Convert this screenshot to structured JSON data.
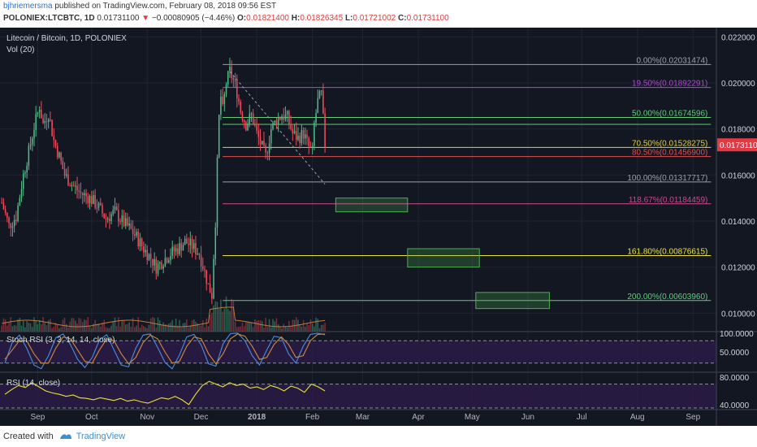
{
  "header": {
    "author": "bjhriemersma",
    "published": "published on TradingView.com, February 08, 2018 09:56 EST",
    "symbol": "POLONIEX:LTCBTC, 1D",
    "last": "0.01731100",
    "change": "−0.00080905 (−4.46%)",
    "o_label": "O:",
    "o": "0.01821400",
    "h_label": "H:",
    "h": "0.01826345",
    "l_label": "L:",
    "l": "0.01721002",
    "c_label": "C:",
    "c": "0.01731100"
  },
  "footer": {
    "created_with": "Created with",
    "brand": "TradingView"
  },
  "colors": {
    "background": "#131722",
    "grid": "#1f2433",
    "up": "#53b987",
    "down": "#eb4d5c",
    "price_badge": "#e03a44",
    "stoch_band": "#2b1b45",
    "stoch_k": "#4a8fe0",
    "stoch_d": "#d08a3a",
    "rsi_band": "#2b1b45",
    "rsi_line": "#e8e23a",
    "volume_ma": "#c07a40",
    "channel_box": "#4caf50"
  },
  "chart_data": [
    {
      "type": "candlestick",
      "title": "Litecoin / Bitcoin, 1D, POLONIEX",
      "indicator_label": "Vol (20)",
      "current_price": "0.01731100",
      "y_axis_ticks": [
        "0.022000",
        "0.020000",
        "0.018000",
        "0.016000",
        "0.014000",
        "0.012000",
        "0.010000"
      ],
      "ylim": [
        0.0092,
        0.0224
      ],
      "x_axis_ticks": [
        "Sep",
        "Oct",
        "Nov",
        "Dec",
        "2018",
        "Feb",
        "Mar",
        "Apr",
        "May",
        "Jun",
        "Jul",
        "Aug",
        "Sep"
      ],
      "x_axis_dates": [
        "2017-09-01",
        "2017-10-01",
        "2017-11-01",
        "2017-12-01",
        "2018-01-01",
        "2018-02-01",
        "2018-03-01",
        "2018-04-01",
        "2018-05-01",
        "2018-06-01",
        "2018-07-01",
        "2018-08-01",
        "2018-09-01"
      ],
      "xlim": [
        "2017-08-11",
        "2018-09-14"
      ],
      "price_path": [
        [
          "2017-08-12",
          0.0148
        ],
        [
          "2017-08-16",
          0.0138
        ],
        [
          "2017-08-20",
          0.0142
        ],
        [
          "2017-08-24",
          0.016
        ],
        [
          "2017-08-27",
          0.017
        ],
        [
          "2017-08-30",
          0.0181
        ],
        [
          "2017-09-02",
          0.019
        ],
        [
          "2017-09-04",
          0.0182
        ],
        [
          "2017-09-07",
          0.0187
        ],
        [
          "2017-09-10",
          0.0175
        ],
        [
          "2017-09-13",
          0.0168
        ],
        [
          "2017-09-16",
          0.016
        ],
        [
          "2017-09-20",
          0.0156
        ],
        [
          "2017-09-25",
          0.0152
        ],
        [
          "2017-09-30",
          0.015
        ],
        [
          "2017-10-04",
          0.0147
        ],
        [
          "2017-10-09",
          0.0141
        ],
        [
          "2017-10-14",
          0.0144
        ],
        [
          "2017-10-18",
          0.014
        ],
        [
          "2017-10-22",
          0.0137
        ],
        [
          "2017-10-26",
          0.0133
        ],
        [
          "2017-10-30",
          0.0128
        ],
        [
          "2017-11-03",
          0.0124
        ],
        [
          "2017-11-06",
          0.012
        ],
        [
          "2017-11-10",
          0.0123
        ],
        [
          "2017-11-14",
          0.0126
        ],
        [
          "2017-11-18",
          0.0128
        ],
        [
          "2017-11-22",
          0.0131
        ],
        [
          "2017-11-26",
          0.0129
        ],
        [
          "2017-11-30",
          0.0126
        ],
        [
          "2017-12-03",
          0.0118
        ],
        [
          "2017-12-05",
          0.0112
        ],
        [
          "2017-12-07",
          0.0108
        ],
        [
          "2017-12-08",
          0.0125
        ],
        [
          "2017-12-09",
          0.014
        ],
        [
          "2017-12-10",
          0.0165
        ],
        [
          "2017-12-11",
          0.0185
        ],
        [
          "2017-12-12",
          0.0194
        ],
        [
          "2017-12-13",
          0.0188
        ],
        [
          "2017-12-15",
          0.02
        ],
        [
          "2017-12-17",
          0.0205
        ],
        [
          "2017-12-19",
          0.0201
        ],
        [
          "2017-12-21",
          0.0196
        ],
        [
          "2017-12-23",
          0.0188
        ],
        [
          "2017-12-26",
          0.0182
        ],
        [
          "2017-12-29",
          0.0186
        ],
        [
          "2018-01-01",
          0.0178
        ],
        [
          "2018-01-04",
          0.0172
        ],
        [
          "2018-01-06",
          0.0168
        ],
        [
          "2018-01-09",
          0.018
        ],
        [
          "2018-01-12",
          0.0184
        ],
        [
          "2018-01-15",
          0.0186
        ],
        [
          "2018-01-18",
          0.0185
        ],
        [
          "2018-01-21",
          0.0178
        ],
        [
          "2018-01-24",
          0.0176
        ],
        [
          "2018-01-27",
          0.0178
        ],
        [
          "2018-01-30",
          0.0172
        ],
        [
          "2018-02-01",
          0.017
        ],
        [
          "2018-02-02",
          0.0182
        ],
        [
          "2018-02-04",
          0.0192
        ],
        [
          "2018-02-06",
          0.0195
        ],
        [
          "2018-02-08",
          0.01731
        ]
      ],
      "fibonacci_levels": [
        {
          "label": "0.00%(0.02031474)",
          "value": 0.0208,
          "color": "#9aa0aa"
        },
        {
          "label": "19.50%(0.01892291)",
          "value": 0.0198,
          "color": "#b04ad0"
        },
        {
          "label": "50.00%(0.01674596)",
          "value": 0.0185,
          "color": "#5fcf7a"
        },
        {
          "label": "",
          "value": 0.0182,
          "color": "#5fcf7a"
        },
        {
          "label": "70.50%(0.01528275)",
          "value": 0.0172,
          "color": "#e0d040"
        },
        {
          "label": "80.50%(0.01456900)",
          "value": 0.0168,
          "color": "#e05050"
        },
        {
          "label": "100.00%(0.01317717)",
          "value": 0.0157,
          "color": "#9aa0aa"
        },
        {
          "label": "118.67%(0.01184459)",
          "value": 0.01475,
          "color": "#d04a90"
        },
        {
          "label": "161.80%(0.00876615)",
          "value": 0.0125,
          "color": "#e8e23a"
        },
        {
          "label": "200.00%(0.00603960)",
          "value": 0.01055,
          "color": "#5fcf7a"
        }
      ],
      "fib_start": "2017-12-13",
      "fib_end": "2018-09-11",
      "target_boxes": [
        {
          "start": "2018-02-14",
          "end": "2018-03-26",
          "top": 0.015,
          "bottom": 0.0144
        },
        {
          "start": "2018-03-26",
          "end": "2018-05-05",
          "top": 0.0128,
          "bottom": 0.012
        },
        {
          "start": "2018-05-03",
          "end": "2018-06-13",
          "top": 0.0109,
          "bottom": 0.0102
        }
      ],
      "trend_line": [
        [
          "2017-12-17",
          0.0205
        ],
        [
          "2018-02-08",
          0.0156
        ]
      ]
    },
    {
      "type": "line",
      "title": "Stoch RSI (3, 3, 14, 14, close)",
      "y_axis_ticks": [
        "100.0000",
        "50.0000"
      ],
      "ylim": [
        0,
        100
      ],
      "band": [
        20,
        80
      ],
      "series": [
        {
          "color": "#4a8fe0",
          "values": [
            20,
            75,
            95,
            60,
            15,
            5,
            40,
            88,
            98,
            70,
            30,
            8,
            35,
            82,
            96,
            55,
            15,
            10,
            60,
            95,
            98,
            62,
            22,
            5,
            42,
            90,
            97,
            68,
            18,
            12,
            72,
            99,
            100,
            80,
            40,
            15,
            55,
            92,
            88,
            45,
            20,
            65,
            97,
            100,
            96
          ]
        },
        {
          "color": "#d08a3a",
          "values": [
            30,
            55,
            80,
            80,
            45,
            20,
            20,
            60,
            90,
            85,
            55,
            25,
            20,
            55,
            85,
            80,
            45,
            18,
            35,
            75,
            95,
            85,
            50,
            20,
            25,
            65,
            90,
            85,
            45,
            18,
            45,
            85,
            98,
            92,
            65,
            30,
            35,
            70,
            90,
            70,
            35,
            40,
            80,
            97,
            98
          ]
        }
      ]
    },
    {
      "type": "line",
      "title": "RSI (14, close)",
      "y_axis_ticks": [
        "80.0000",
        "40.0000"
      ],
      "ylim": [
        35,
        85
      ],
      "band": [
        30,
        70
      ],
      "series": [
        {
          "color": "#e8e23a",
          "values": [
            55,
            62,
            68,
            65,
            72,
            66,
            60,
            57,
            55,
            52,
            54,
            50,
            49,
            47,
            50,
            48,
            46,
            49,
            45,
            47,
            44,
            42,
            46,
            50,
            48,
            52,
            47,
            40,
            55,
            68,
            74,
            70,
            66,
            72,
            68,
            70,
            64,
            66,
            62,
            68,
            65,
            60,
            67,
            64,
            58,
            70,
            66,
            60
          ]
        }
      ]
    }
  ]
}
